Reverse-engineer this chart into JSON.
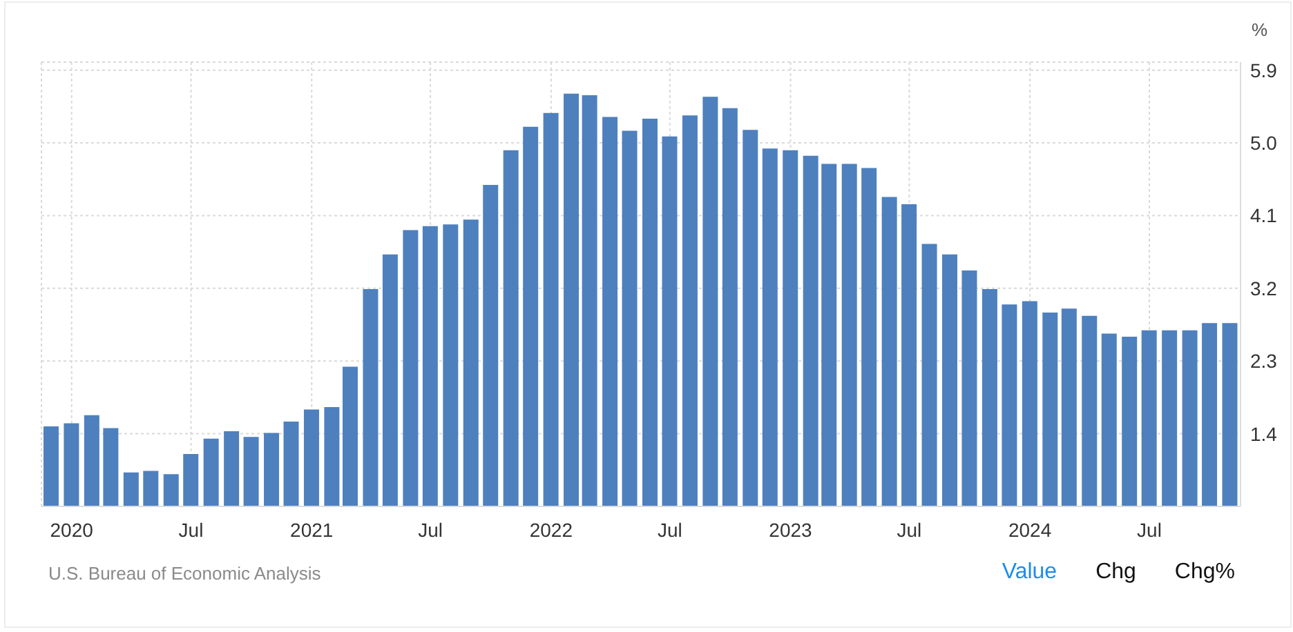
{
  "chart_data": {
    "type": "bar",
    "ylabel": "%",
    "x": [
      "2019-12",
      "2020-01",
      "2020-02",
      "2020-03",
      "2020-04",
      "2020-05",
      "2020-06",
      "2020-07",
      "2020-08",
      "2020-09",
      "2020-10",
      "2020-11",
      "2020-12",
      "2021-01",
      "2021-02",
      "2021-03",
      "2021-04",
      "2021-05",
      "2021-06",
      "2021-07",
      "2021-08",
      "2021-09",
      "2021-10",
      "2021-11",
      "2021-12",
      "2022-01",
      "2022-02",
      "2022-03",
      "2022-04",
      "2022-05",
      "2022-06",
      "2022-07",
      "2022-08",
      "2022-09",
      "2022-10",
      "2022-11",
      "2022-12",
      "2023-01",
      "2023-02",
      "2023-03",
      "2023-04",
      "2023-05",
      "2023-06",
      "2023-07",
      "2023-08",
      "2023-09",
      "2023-10",
      "2023-11",
      "2023-12",
      "2024-01",
      "2024-02",
      "2024-03",
      "2024-04",
      "2024-05",
      "2024-06",
      "2024-07",
      "2024-08",
      "2024-09",
      "2024-10",
      "2024-11"
    ],
    "values": [
      1.49,
      1.53,
      1.63,
      1.47,
      0.92,
      0.94,
      0.9,
      1.15,
      1.34,
      1.43,
      1.36,
      1.41,
      1.55,
      1.7,
      1.73,
      2.23,
      3.19,
      3.62,
      3.92,
      3.97,
      3.99,
      4.05,
      4.48,
      4.91,
      5.2,
      5.37,
      5.61,
      5.59,
      5.32,
      5.15,
      5.3,
      5.08,
      5.34,
      5.57,
      5.43,
      5.16,
      4.93,
      4.91,
      4.84,
      4.74,
      4.74,
      4.69,
      4.33,
      4.24,
      3.75,
      3.62,
      3.42,
      3.19,
      3.0,
      3.04,
      2.9,
      2.95,
      2.86,
      2.64,
      2.6,
      2.68,
      2.68,
      2.68,
      2.77,
      2.77
    ],
    "color": "#4e80be",
    "xlim": [
      "2019-11-16",
      "2024-11-17"
    ],
    "xticks": [
      {
        "value": "2020-01",
        "label": "2020"
      },
      {
        "value": "2020-07",
        "label": "Jul"
      },
      {
        "value": "2021-01",
        "label": "2021"
      },
      {
        "value": "2021-07",
        "label": "Jul"
      },
      {
        "value": "2022-01",
        "label": "2022"
      },
      {
        "value": "2022-07",
        "label": "Jul"
      },
      {
        "value": "2023-01",
        "label": "2023"
      },
      {
        "value": "2023-07",
        "label": "Jul"
      },
      {
        "value": "2024-01",
        "label": "2024"
      },
      {
        "value": "2024-07",
        "label": "Jul"
      }
    ],
    "ylim": [
      0.5,
      6.0
    ],
    "yticks": [
      1.4,
      2.3,
      3.2,
      4.1,
      {
        "value": 5.0,
        "label": "5.0"
      },
      5.9
    ],
    "grid": true,
    "annotations": [
      "U.S. Bureau of Economic Analysis",
      "Value",
      "Chg",
      "Chg%"
    ]
  }
}
